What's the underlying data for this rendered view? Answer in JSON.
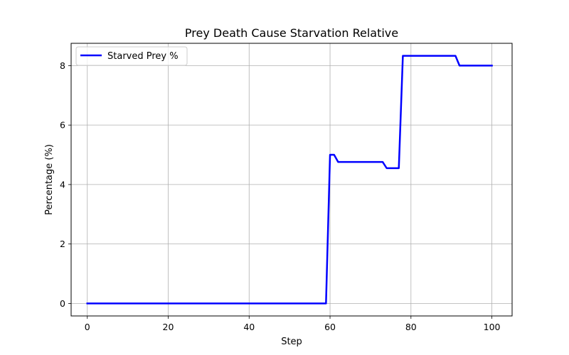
{
  "chart_data": {
    "type": "line",
    "title": "Prey Death Cause Starvation Relative",
    "xlabel": "Step",
    "ylabel": "Percentage (%)",
    "xlim": [
      -4,
      105
    ],
    "ylim": [
      -0.42,
      8.75
    ],
    "xticks": [
      0,
      20,
      40,
      60,
      80,
      100
    ],
    "yticks": [
      0,
      2,
      4,
      6,
      8
    ],
    "grid": true,
    "legend_position": "top-left",
    "series": [
      {
        "name": "Starved Prey %",
        "color": "#0000ff",
        "x": [
          0,
          59,
          60,
          61,
          62,
          73,
          74,
          77,
          78,
          91,
          92,
          100
        ],
        "y": [
          0,
          0,
          5.0,
          5.0,
          4.76,
          4.76,
          4.55,
          4.55,
          8.33,
          8.33,
          8.0,
          8.0
        ]
      }
    ]
  }
}
